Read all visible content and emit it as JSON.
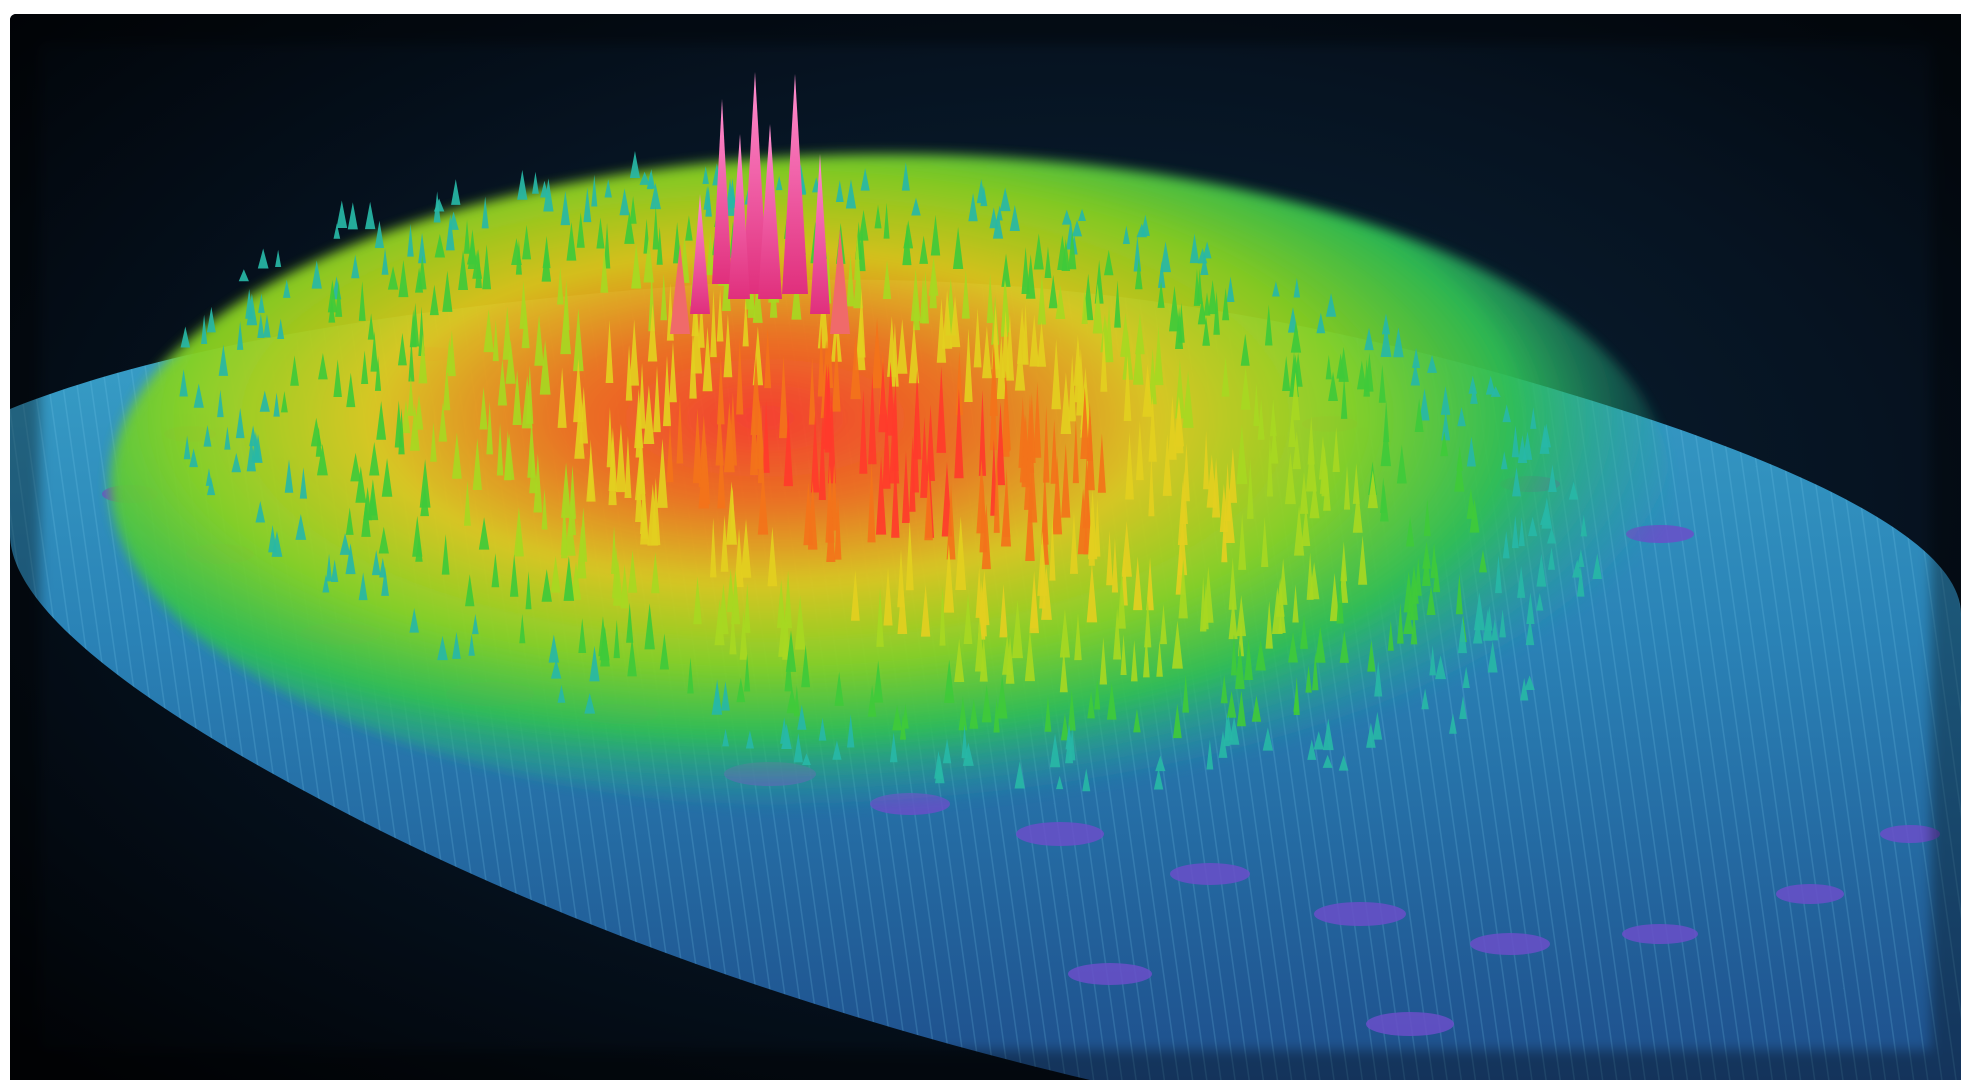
{
  "image": {
    "subject": "3d-spectral-surface",
    "icon": "surface-plot-picture",
    "colors": {
      "background_top": "#02040a",
      "background_bottom": "#07182a",
      "base_surface": "#2a8fb8",
      "base_shadow": "#1f4e86",
      "ring_violet": "#6a4fc9",
      "ring_green": "#3fc83a",
      "ring_yellow": "#d9d51d",
      "ring_orange": "#f08a1c",
      "ring_red": "#ff3a2a",
      "peak_pink": "#ff4fa7"
    }
  }
}
